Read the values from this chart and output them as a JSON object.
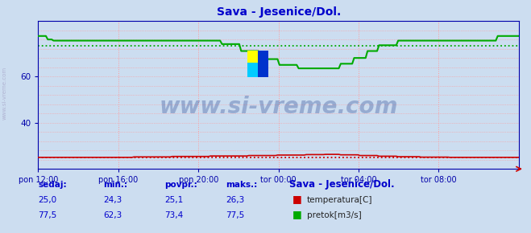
{
  "title": "Sava - Jesenice/Dol.",
  "title_color": "#0000cc",
  "bg_color": "#ccddf0",
  "plot_bg_color": "#ccddf0",
  "grid_color": "#ff9999",
  "grid_style": ":",
  "x_labels": [
    "pon 12:00",
    "pon 16:00",
    "pon 20:00",
    "tor 00:00",
    "tor 04:00",
    "tor 08:00"
  ],
  "watermark": "www.si-vreme.com",
  "watermark_color": "#1a3a8a",
  "watermark_alpha": 0.3,
  "temp_color": "#cc0000",
  "flow_color": "#00aa00",
  "legend_title": "Sava - Jesenice/Dol.",
  "legend_title_color": "#0000cc",
  "legend_temp_label": "temperatura[C]",
  "legend_flow_label": "pretok[m3/s]",
  "stats_headers": [
    "sedaj:",
    "min.:",
    "povpr.:",
    "maks.:"
  ],
  "stats_temp": [
    25.0,
    24.3,
    25.1,
    26.3
  ],
  "stats_flow": [
    77.5,
    62.3,
    73.4,
    77.5
  ],
  "stats_color": "#0000cc",
  "ylim": [
    20,
    84
  ],
  "yticks": [
    40,
    60
  ],
  "temp_avg": 25.1,
  "flow_avg": 73.4,
  "n_points": 252
}
